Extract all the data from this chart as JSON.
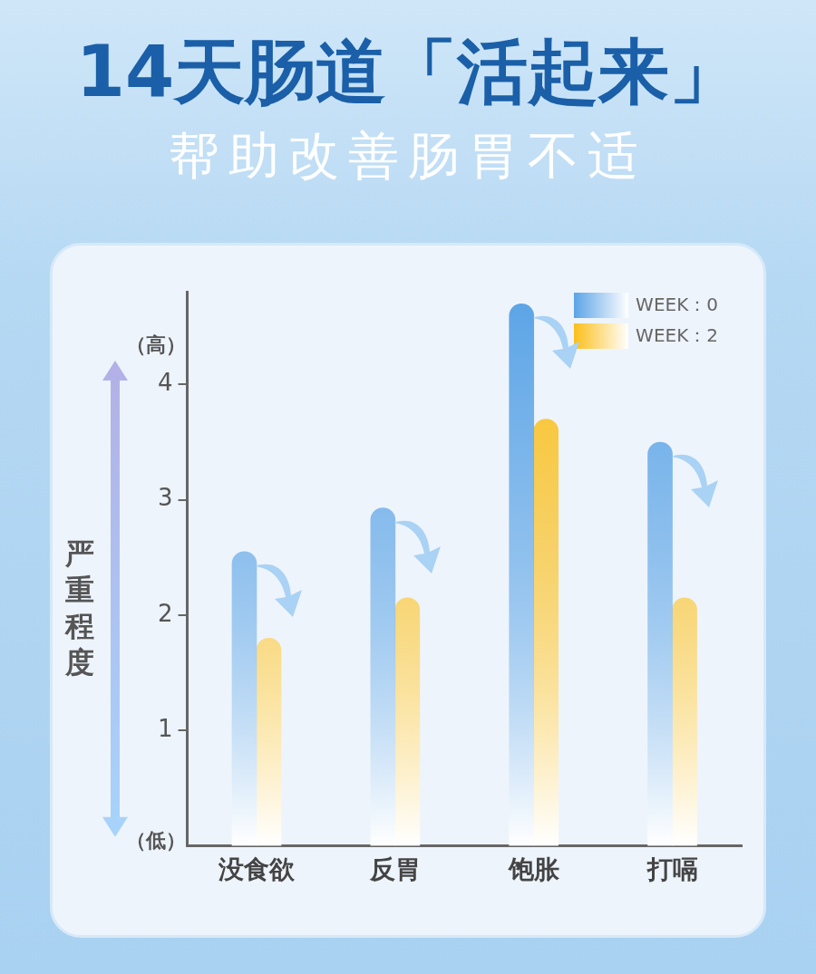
{
  "chart_data": {
    "type": "bar",
    "title": "14天肠道「活起来」",
    "subtitle": "帮助改善肠胃不适",
    "ylabel": "严重程度",
    "annotations": [
      "（高）",
      "（低）"
    ],
    "categories": [
      "没食欲",
      "反胃",
      "饱胀",
      "打嗝"
    ],
    "series": [
      {
        "name": "WEEK：0",
        "color": "#5ba4e6",
        "values": [
          2.55,
          2.93,
          4.7,
          3.5
        ]
      },
      {
        "name": "WEEK：2",
        "color": "#fbbf1a",
        "values": [
          1.8,
          2.15,
          3.7,
          2.15
        ]
      }
    ],
    "ylim": [
      0,
      4.8
    ],
    "yticks": [
      1,
      2,
      3,
      4
    ],
    "grid": false,
    "legend": "top right"
  }
}
